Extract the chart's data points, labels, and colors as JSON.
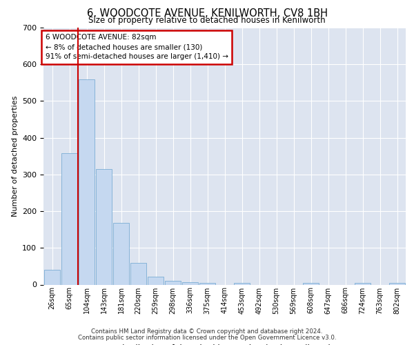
{
  "title": "6, WOODCOTE AVENUE, KENILWORTH, CV8 1BH",
  "subtitle": "Size of property relative to detached houses in Kenilworth",
  "xlabel": "Distribution of detached houses by size in Kenilworth",
  "ylabel": "Number of detached properties",
  "bar_color": "#c5d8f0",
  "bar_edge_color": "#7aadd4",
  "background_color": "#dde4f0",
  "annotation_box_color": "#ffffff",
  "annotation_border_color": "#cc0000",
  "vline_color": "#cc0000",
  "vline_x": 1.5,
  "annotation_lines": [
    "6 WOODCOTE AVENUE: 82sqm",
    "← 8% of detached houses are smaller (130)",
    "91% of semi-detached houses are larger (1,410) →"
  ],
  "bins": [
    "26sqm",
    "65sqm",
    "104sqm",
    "143sqm",
    "181sqm",
    "220sqm",
    "259sqm",
    "298sqm",
    "336sqm",
    "375sqm",
    "414sqm",
    "453sqm",
    "492sqm",
    "530sqm",
    "569sqm",
    "608sqm",
    "647sqm",
    "686sqm",
    "724sqm",
    "763sqm",
    "802sqm"
  ],
  "values": [
    40,
    358,
    560,
    315,
    168,
    60,
    22,
    10,
    7,
    5,
    0,
    5,
    0,
    0,
    0,
    5,
    0,
    0,
    5,
    0,
    5
  ],
  "ylim": [
    0,
    700
  ],
  "yticks": [
    0,
    100,
    200,
    300,
    400,
    500,
    600,
    700
  ],
  "footer_line1": "Contains HM Land Registry data © Crown copyright and database right 2024.",
  "footer_line2": "Contains public sector information licensed under the Open Government Licence v3.0."
}
